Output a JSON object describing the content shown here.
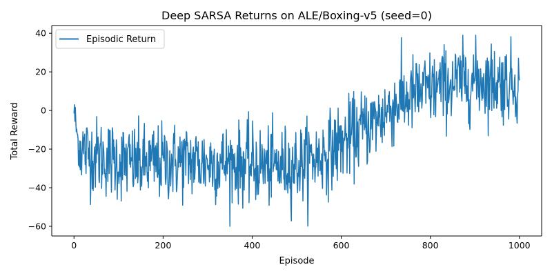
{
  "chart_data": {
    "type": "line",
    "title": "Deep SARSA Returns on ALE/Boxing-v5 (seed=0)",
    "xlabel": "Episode",
    "ylabel": "Total Reward",
    "xlim": [
      -50,
      1050
    ],
    "ylim": [
      -65,
      44
    ],
    "xticks": [
      0,
      200,
      400,
      600,
      800,
      1000
    ],
    "yticks": [
      -60,
      -40,
      -20,
      0,
      20,
      40
    ],
    "grid": false,
    "legend_position": "top-left",
    "series": [
      {
        "name": "Episodic Return",
        "color": "#1f77b4",
        "trend": {
          "x": [
            0,
            10,
            30,
            60,
            100,
            150,
            200,
            250,
            300,
            350,
            400,
            450,
            500,
            550,
            580,
            600,
            620,
            650,
            680,
            700,
            720,
            750,
            800,
            850,
            900,
            950,
            1000
          ],
          "y": [
            0,
            -18,
            -22,
            -24,
            -26,
            -28,
            -27,
            -26,
            -27,
            -27,
            -28,
            -29,
            -28,
            -24,
            -20,
            -17,
            -14,
            -9,
            -5,
            -1,
            3,
            7,
            11,
            14,
            16,
            15,
            14
          ]
        },
        "noise_amplitude": 10,
        "y_max": 39,
        "y_min": -60,
        "n_episodes": 1001
      }
    ]
  }
}
